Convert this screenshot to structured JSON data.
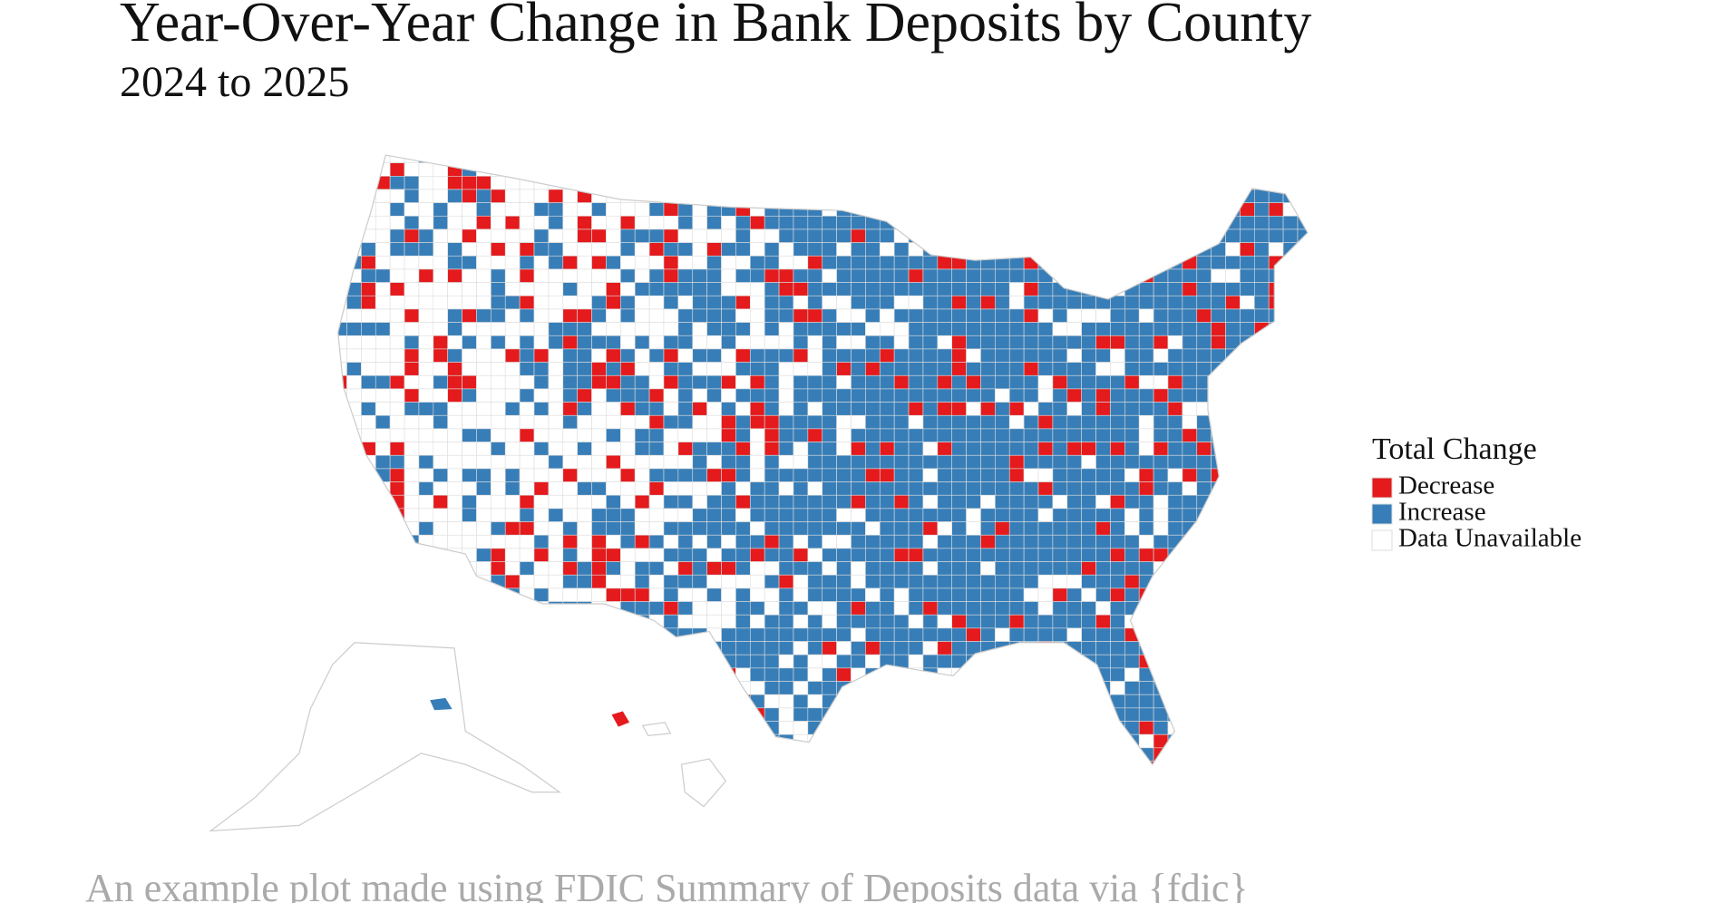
{
  "title": "Year-Over-Year Change in Bank Deposits by County",
  "subtitle": "2024 to 2025",
  "legend": {
    "title": "Total Change",
    "items": [
      {
        "label": "Decrease",
        "color": "#e41a1c"
      },
      {
        "label": "Increase",
        "color": "#377eb8"
      },
      {
        "label": "Data Unavailable",
        "color": "#ffffff"
      }
    ]
  },
  "caption": "An example plot made using FDIC Summary of Deposits data via {fdic}"
}
